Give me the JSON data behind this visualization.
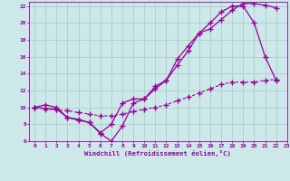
{
  "xlabel": "Windchill (Refroidissement éolien,°C)",
  "bg_color": "#cce8e8",
  "grid_color": "#aacece",
  "line_color": "#990099",
  "xlim": [
    -0.5,
    23
  ],
  "ylim": [
    6,
    22.5
  ],
  "xticks": [
    0,
    1,
    2,
    3,
    4,
    5,
    6,
    7,
    8,
    9,
    10,
    11,
    12,
    13,
    14,
    15,
    16,
    17,
    18,
    19,
    20,
    21,
    22,
    23
  ],
  "yticks": [
    6,
    8,
    10,
    12,
    14,
    16,
    18,
    20,
    22
  ],
  "line1_x": [
    0,
    1,
    2,
    3,
    4,
    5,
    6,
    7,
    8,
    9,
    10,
    11,
    12,
    13,
    14,
    15,
    16,
    17,
    18,
    19,
    20,
    21,
    22
  ],
  "line1_y": [
    10.0,
    10.3,
    10.0,
    8.8,
    8.6,
    8.2,
    6.9,
    6.0,
    7.8,
    10.5,
    11.0,
    12.5,
    13.2,
    15.7,
    17.3,
    18.8,
    19.3,
    20.4,
    21.5,
    22.3,
    22.3,
    22.1,
    21.8
  ],
  "line2_x": [
    0,
    2,
    3,
    4,
    5,
    6,
    7,
    8,
    9,
    10,
    11,
    12,
    13,
    14,
    15,
    16,
    17,
    18,
    19,
    20,
    21,
    22
  ],
  "line2_y": [
    10.0,
    9.8,
    8.8,
    8.5,
    8.2,
    7.0,
    8.0,
    10.5,
    11.0,
    11.0,
    12.2,
    13.2,
    15.0,
    16.7,
    18.8,
    20.0,
    21.3,
    22.0,
    22.0,
    20.0,
    16.0,
    13.2
  ],
  "line3_x": [
    0,
    1,
    2,
    3,
    4,
    5,
    6,
    7,
    8,
    9,
    10,
    11,
    12,
    13,
    14,
    15,
    16,
    17,
    18,
    19,
    20,
    21,
    22
  ],
  "line3_y": [
    10.0,
    9.8,
    9.7,
    9.6,
    9.4,
    9.2,
    9.0,
    9.0,
    9.2,
    9.5,
    9.8,
    10.0,
    10.3,
    10.8,
    11.2,
    11.7,
    12.2,
    12.7,
    13.0,
    13.0,
    13.0,
    13.2,
    13.3
  ]
}
